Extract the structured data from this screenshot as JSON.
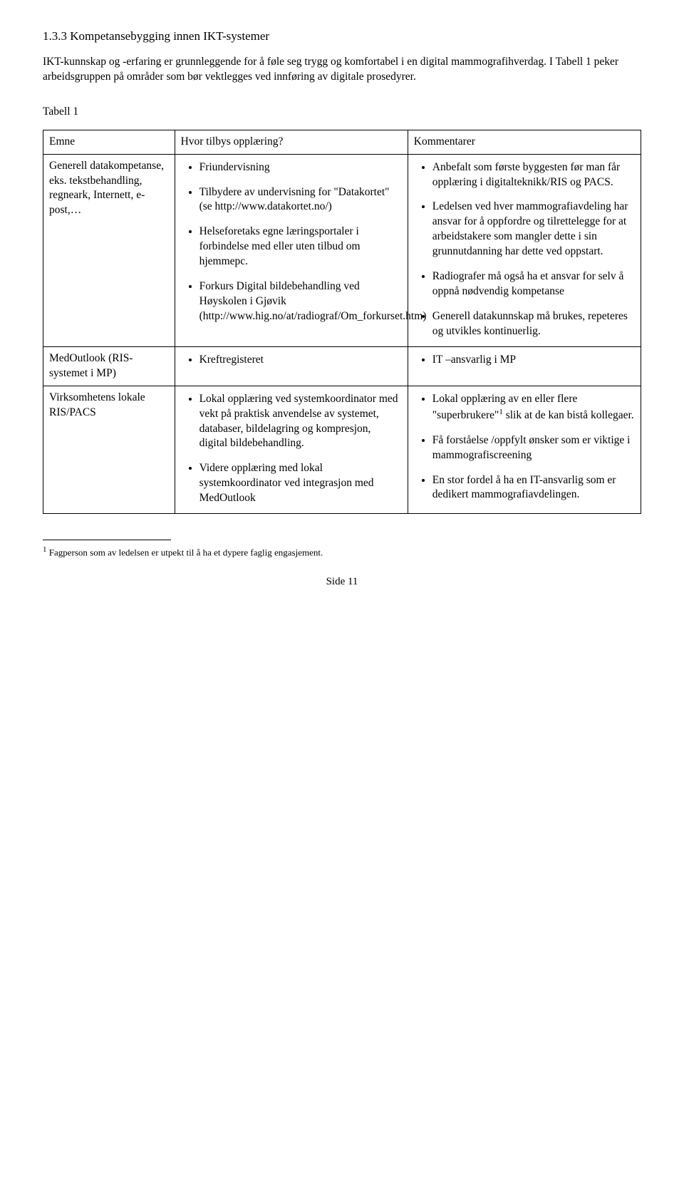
{
  "heading": "1.3.3  Kompetansebygging innen IKT-systemer",
  "intro": "IKT-kunnskap og -erfaring er grunnleggende for å føle seg trygg og komfortabel i en digital mammografihverdag. I Tabell 1 peker arbeidsgruppen på områder som bør vektlegges ved innføring av digitale prosedyrer.",
  "table_label": "Tabell 1",
  "header": {
    "c1": "Emne",
    "c2": "Hvor tilbys opplæring?",
    "c3": "Kommentarer"
  },
  "row1": {
    "emne": "Generell datakompetanse, eks. tekstbehandling, regneark, Internett, e-post,…",
    "b1": "Friundervisning",
    "b2": "Tilbydere av undervisning for \"Datakortet\" (se http://www.datakortet.no/)",
    "b3": "Helseforetaks egne læringsportaler i forbindelse med eller uten tilbud om hjemmepc.",
    "b4": "Forkurs Digital bildebehandling ved Høyskolen i Gjøvik (http://www.hig.no/at/radiograf/Om_forkurset.htm)",
    "k1": "Anbefalt som første byggesten før man får opplæring i digitalteknikk/RIS og PACS.",
    "k2": "Ledelsen ved hver mammografiavdeling har ansvar for å oppfordre og tilrettelegge for at arbeidstakere som mangler dette i sin grunnutdanning har dette ved oppstart.",
    "k3": "Radiografer må også ha et ansvar for selv å oppnå nødvendig kompetanse",
    "k4": "Generell datakunnskap må brukes, repeteres og utvikles kontinuerlig."
  },
  "row2": {
    "emne": "MedOutlook (RIS-systemet i MP)",
    "b1": "Kreftregisteret",
    "k1": "IT –ansvarlig i MP"
  },
  "row3": {
    "emne": "Virksomhetens lokale RIS/PACS",
    "b1": "Lokal opplæring ved systemkoordinator med vekt på praktisk anvendelse av systemet, databaser, bildelagring og kompresjon, digital bildebehandling.",
    "b2": "Videre opplæring med lokal systemkoordinator ved integrasjon med MedOutlook",
    "k1_a": "Lokal opplæring av en eller flere \"superbrukere\"",
    "k1_b": " slik at de kan bistå kollegaer.",
    "k2": "Få forståelse /oppfylt ønsker som er viktige i mammografiscreening",
    "k3": "En stor fordel å ha en IT-ansvarlig som er dedikert mammografiavdelingen."
  },
  "footnote_num": "1",
  "footnote": " Fagperson som av ledelsen er utpekt til å ha et dypere faglig engasjement.",
  "page_num": "Side 11"
}
